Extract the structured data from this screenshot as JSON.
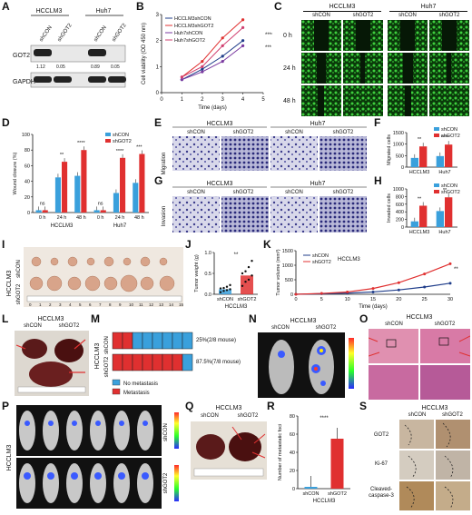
{
  "panels": {
    "A": {
      "letter": "A",
      "cell_lines": [
        "HCCLM3",
        "Huh7"
      ],
      "lanes": [
        "shCON",
        "shGOT2",
        "shCON",
        "shGOT2"
      ],
      "rows": [
        "GOT2",
        "GAPDH"
      ],
      "quant": [
        "1.12",
        "0.05",
        "0.89",
        "0.05"
      ]
    },
    "B": {
      "letter": "B"
    },
    "C": {
      "letter": "C",
      "groups": [
        "HCCLM3",
        "Huh7"
      ],
      "cols": [
        "shCON",
        "shGOT2",
        "shCON",
        "shGOT2"
      ],
      "rows": [
        "0 h",
        "24 h",
        "48 h"
      ]
    },
    "D": {
      "letter": "D"
    },
    "E": {
      "letter": "E",
      "groups": [
        "HCCLM3",
        "Huh7"
      ],
      "cols": [
        "shCON",
        "shGOT2",
        "shCON",
        "shGOT2"
      ],
      "row": "Migration"
    },
    "F": {
      "letter": "F"
    },
    "G": {
      "letter": "G",
      "groups": [
        "HCCLM3",
        "Huh7"
      ],
      "cols": [
        "shCON",
        "shGOT2",
        "shCON",
        "shGOT2"
      ],
      "row": "Invasion"
    },
    "H": {
      "letter": "H"
    },
    "I": {
      "letter": "I",
      "side": "HCCLM3",
      "rows": [
        "shCON",
        "shGOT2"
      ],
      "ruler": [
        "0",
        "1",
        "2",
        "3",
        "4",
        "5",
        "6",
        "7",
        "8",
        "9",
        "10",
        "11",
        "12",
        "13",
        "14",
        "15"
      ]
    },
    "J": {
      "letter": "J"
    },
    "K": {
      "letter": "K"
    },
    "L": {
      "letter": "L",
      "title": "HCCLM3",
      "cols": [
        "shCON",
        "shGOT2"
      ]
    },
    "M": {
      "letter": "M",
      "side": "HCCLM3",
      "rows": [
        "shCON",
        "shGOT2"
      ],
      "grid": [
        [
          "met",
          "met",
          "none",
          "none",
          "none",
          "none",
          "none",
          "none"
        ],
        [
          "met",
          "met",
          "met",
          "met",
          "met",
          "met",
          "met",
          "none"
        ]
      ],
      "pct": [
        "25%(2/8 mouse)",
        "87.5%(7/8 mouse)"
      ],
      "legend": [
        "No metastasis",
        "Metastasis"
      ],
      "colors": {
        "none": "#3aa0dc",
        "met": "#e03030"
      }
    },
    "N": {
      "letter": "N",
      "title": "HCCLM3",
      "cols": [
        "shCON",
        "shGOT2"
      ]
    },
    "O": {
      "letter": "O",
      "title": "HCCLM3",
      "cols": [
        "shCON",
        "shGOT2"
      ]
    },
    "P": {
      "letter": "P",
      "side": "HCCLM3",
      "rows": [
        "shCON",
        "shGOT2"
      ]
    },
    "Q": {
      "letter": "Q",
      "title": "HCCLM3",
      "cols": [
        "shCON",
        "shGOT2"
      ]
    },
    "R": {
      "letter": "R"
    },
    "S": {
      "letter": "S",
      "title": "HCCLM3",
      "cols": [
        "shCON",
        "shGOT2"
      ],
      "rows": [
        "GOT2",
        "Ki-67",
        "Cleaved-\ncaspase-3"
      ]
    }
  },
  "chart_data": [
    {
      "id": "B",
      "type": "line",
      "xlabel": "Time (days)",
      "ylabel": "Cell viability (OD 450 nm)",
      "x": [
        1,
        2,
        3,
        4
      ],
      "xticks": [
        "0",
        "1",
        "2",
        "3",
        "4",
        "5"
      ],
      "xlim": [
        0,
        5
      ],
      "yticks": [
        "0",
        "1",
        "2",
        "3"
      ],
      "ylim": [
        0,
        3
      ],
      "series": [
        {
          "name": "HCCLM3shCON",
          "color": "#1f3d8a",
          "values": [
            0.5,
            0.9,
            1.4,
            2.0
          ]
        },
        {
          "name": "HCCLM3shGOT2",
          "color": "#e03030",
          "values": [
            0.6,
            1.2,
            2.1,
            2.8
          ]
        },
        {
          "name": "Huh7shCON",
          "color": "#7a3aa0",
          "values": [
            0.5,
            0.8,
            1.2,
            1.8
          ]
        },
        {
          "name": "Huh7shGOT2",
          "color": "#d04070",
          "values": [
            0.6,
            1.0,
            1.8,
            2.5
          ]
        }
      ],
      "annotations": [
        "***",
        "****"
      ]
    },
    {
      "id": "D",
      "type": "bar",
      "ylabel": "Wound closure (%)",
      "yticks": [
        "0",
        "20",
        "40",
        "60",
        "80",
        "100"
      ],
      "ylim": [
        0,
        100
      ],
      "groups": [
        "HCCLM3",
        "Huh7"
      ],
      "categories": [
        "0 h",
        "24 h",
        "48 h",
        "0 h",
        "24 h",
        "48 h"
      ],
      "series": [
        {
          "name": "shCON",
          "color": "#3aa0dc",
          "values": [
            3,
            45,
            47,
            3,
            25,
            38
          ]
        },
        {
          "name": "shGOT2",
          "color": "#e03030",
          "values": [
            3,
            65,
            80,
            3,
            70,
            75
          ]
        }
      ],
      "annotations": [
        "ns",
        "**",
        "****",
        "ns",
        "****",
        "***"
      ]
    },
    {
      "id": "F",
      "type": "bar",
      "ylabel": "Migrated cells",
      "yticks": [
        "0",
        "500",
        "1000",
        "1500"
      ],
      "ylim": [
        0,
        1500
      ],
      "categories": [
        "HCCLM3",
        "Huh7"
      ],
      "series": [
        {
          "name": "shCON",
          "color": "#3aa0dc",
          "values": [
            400,
            480
          ]
        },
        {
          "name": "shGOT2",
          "color": "#e03030",
          "values": [
            900,
            980
          ]
        }
      ],
      "annotations": [
        "**",
        "****"
      ]
    },
    {
      "id": "H",
      "type": "bar",
      "ylabel": "Invaded cells",
      "yticks": [
        "0",
        "200",
        "400",
        "600",
        "800",
        "1000"
      ],
      "ylim": [
        0,
        1000
      ],
      "categories": [
        "HCCLM3",
        "Huh7"
      ],
      "series": [
        {
          "name": "shCON",
          "color": "#3aa0dc",
          "values": [
            150,
            420
          ]
        },
        {
          "name": "shGOT2",
          "color": "#e03030",
          "values": [
            560,
            780
          ]
        }
      ],
      "annotations": [
        "**",
        "**"
      ]
    },
    {
      "id": "J",
      "type": "bar",
      "ylabel": "Tumor weight (g)",
      "xlabel": "HCCLM3",
      "yticks": [
        "0.0",
        "0.5",
        "1.0"
      ],
      "ylim": [
        0,
        1.0
      ],
      "categories": [
        "shCON",
        "shGOT2"
      ],
      "series": [
        {
          "name": "",
          "values": [
            0.12,
            0.45
          ]
        }
      ],
      "points": [
        [
          0.05,
          0.08,
          0.1,
          0.12,
          0.14,
          0.15,
          0.18,
          0.22
        ],
        [
          0.2,
          0.3,
          0.35,
          0.45,
          0.5,
          0.55,
          0.65,
          0.8
        ]
      ],
      "annotations": [
        "**"
      ]
    },
    {
      "id": "K",
      "type": "line",
      "xlabel": "Time (days)",
      "ylabel": "Tumor volume (mm³)",
      "xticks": [
        "0",
        "5",
        "10",
        "15",
        "20",
        "25",
        "30"
      ],
      "xlim": [
        0,
        30
      ],
      "yticks": [
        "0",
        "500",
        "1000",
        "1500"
      ],
      "ylim": [
        0,
        1500
      ],
      "x": [
        0,
        5,
        10,
        15,
        20,
        25,
        30
      ],
      "series": [
        {
          "name": "shCON",
          "color": "#1f3d8a",
          "values": [
            0,
            20,
            40,
            80,
            150,
            250,
            380
          ]
        },
        {
          "name": "shGOT2",
          "color": "#e03030",
          "values": [
            0,
            30,
            80,
            200,
            400,
            700,
            1050
          ]
        }
      ],
      "legend_group": "HCCLM3",
      "annotations": [
        "**"
      ]
    },
    {
      "id": "R",
      "type": "bar",
      "ylabel": "Number of metastatic foci",
      "xlabel": "HCCLM3",
      "yticks": [
        "0",
        "20",
        "40",
        "60",
        "80"
      ],
      "ylim": [
        0,
        80
      ],
      "categories": [
        "shCON",
        "shGOT2"
      ],
      "series": [
        {
          "name": "",
          "values": [
            2,
            55
          ]
        }
      ],
      "annotations": [
        "****"
      ]
    }
  ]
}
